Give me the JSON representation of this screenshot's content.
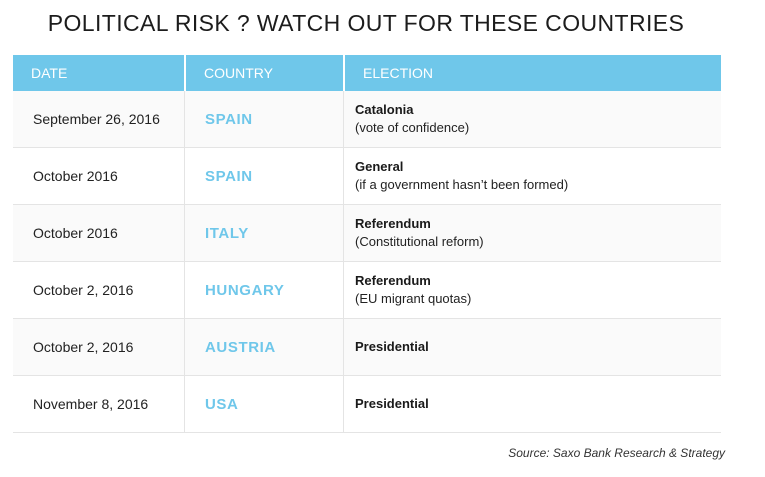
{
  "title": "POLITICAL RISK ? WATCH OUT FOR THESE COUNTRIES",
  "columns": {
    "date": "DATE",
    "country": "COUNTRY",
    "election": "ELECTION"
  },
  "rows": [
    {
      "date": "September 26, 2016",
      "country": "SPAIN",
      "election": "Catalonia",
      "detail": "(vote of confidence)"
    },
    {
      "date": "October 2016",
      "country": "SPAIN",
      "election": "General",
      "detail": "(if a government hasn’t been formed)"
    },
    {
      "date": "October 2016",
      "country": "ITALY",
      "election": "Referendum",
      "detail": "(Constitutional reform)"
    },
    {
      "date": "October 2, 2016",
      "country": "HUNGARY",
      "election": "Referendum",
      "detail": "(EU migrant quotas)"
    },
    {
      "date": "October 2, 2016",
      "country": "AUSTRIA",
      "election": "Presidential",
      "detail": ""
    },
    {
      "date": "November 8, 2016",
      "country": "USA",
      "election": "Presidential",
      "detail": ""
    }
  ],
  "source": "Source: Saxo Bank Research & Strategy",
  "colors": {
    "accent": "#6fc7ea",
    "header_text": "#ffffff",
    "row_divider": "#e4e4e4"
  }
}
